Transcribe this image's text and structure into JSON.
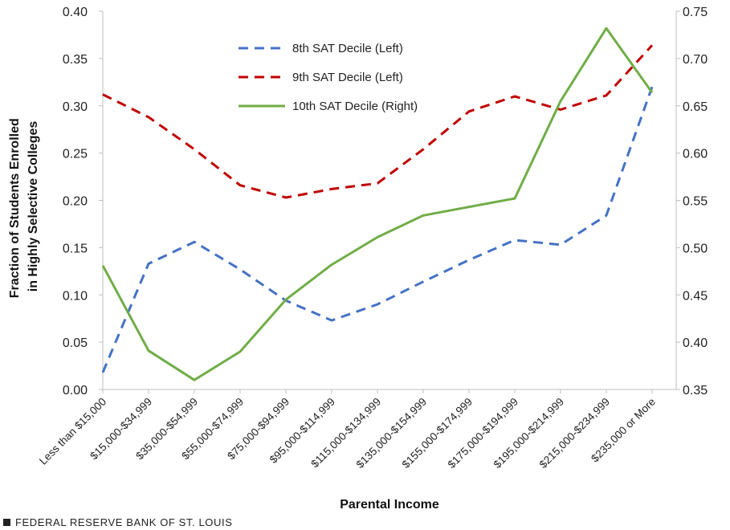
{
  "chart_data": {
    "type": "line",
    "xlabel": "Parental Income",
    "ylabel_lines": [
      "Fraction of Students Enrolled",
      "in Highly Selective Colleges"
    ],
    "categories": [
      "Less than $15,000",
      "$15,000-$34,999",
      "$35,000-$54,999",
      "$55,000-$74,999",
      "$75,000-$94,999",
      "$95,000-$114,999",
      "$115,000-$134,999",
      "$135,000-$154,999",
      "$155,000-$174,999",
      "$175,000-$194,999",
      "$195,000-$214,999",
      "$215,000-$234,999",
      "$235,000 or More"
    ],
    "left_axis": {
      "ylim": [
        0,
        0.4
      ],
      "ticks": [
        "0.00",
        "0.05",
        "0.10",
        "0.15",
        "0.20",
        "0.25",
        "0.30",
        "0.35",
        "0.40"
      ]
    },
    "right_axis": {
      "ylim": [
        0.35,
        0.75
      ],
      "ticks": [
        "0.35",
        "0.40",
        "0.45",
        "0.50",
        "0.55",
        "0.60",
        "0.65",
        "0.70",
        "0.75"
      ]
    },
    "grid": false,
    "legend_position": "top-center",
    "series": [
      {
        "name": "8th SAT Decile (Left)",
        "axis": "left",
        "color": "#4472C4",
        "dash": "dashed",
        "values": [
          0.018,
          0.133,
          0.156,
          0.127,
          0.094,
          0.073,
          0.09,
          0.114,
          0.137,
          0.158,
          0.153,
          0.184,
          0.32
        ]
      },
      {
        "name": "9th SAT Decile (Left)",
        "axis": "left",
        "color": "#C00000",
        "dash": "dashed",
        "values": [
          0.312,
          0.288,
          0.254,
          0.216,
          0.203,
          0.212,
          0.218,
          0.254,
          0.294,
          0.31,
          0.296,
          0.311,
          0.364
        ]
      },
      {
        "name": "10th SAT Decile (Right)",
        "axis": "right",
        "color": "#70AD47",
        "dash": "solid",
        "values": [
          0.481,
          0.391,
          0.36,
          0.39,
          0.445,
          0.482,
          0.511,
          0.534,
          0.543,
          0.552,
          0.655,
          0.732,
          0.664
        ]
      }
    ]
  },
  "footer": {
    "text": "FEDERAL RESERVE BANK OF ST. LOUIS"
  }
}
